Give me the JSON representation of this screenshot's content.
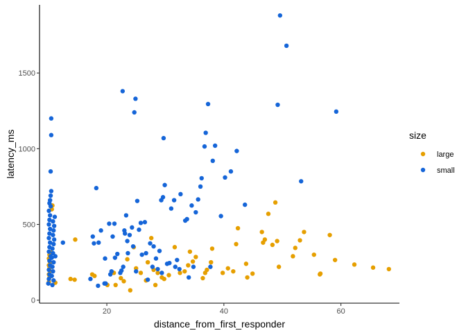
{
  "chart_data": {
    "type": "scatter",
    "title": "",
    "xlabel": "distance_from_first_responder",
    "ylabel": "latency_ms",
    "xlim": [
      8.5,
      70
    ],
    "ylim": [
      -20,
      1950
    ],
    "x_ticks": [
      20,
      40,
      60
    ],
    "y_ticks": [
      0,
      500,
      1000,
      1500
    ],
    "grid": false,
    "legend": {
      "title": "size",
      "position": "right"
    },
    "series": [
      {
        "name": "large",
        "color": "#E69F00",
        "points": [
          [
            10.1,
            120
          ],
          [
            10.2,
            150
          ],
          [
            10.1,
            170
          ],
          [
            10.3,
            190
          ],
          [
            10.2,
            210
          ],
          [
            10.1,
            230
          ],
          [
            10.3,
            250
          ],
          [
            10.2,
            260
          ],
          [
            10.1,
            275
          ],
          [
            10.3,
            290
          ],
          [
            10.2,
            300
          ],
          [
            10.4,
            315
          ],
          [
            10.6,
            600
          ],
          [
            10.7,
            625
          ],
          [
            11.2,
            115
          ],
          [
            13.8,
            140
          ],
          [
            14.5,
            135
          ],
          [
            14.6,
            400
          ],
          [
            17.5,
            170
          ],
          [
            17.9,
            160
          ],
          [
            20.1,
            100
          ],
          [
            21.2,
            180
          ],
          [
            21.5,
            100
          ],
          [
            22.4,
            145
          ],
          [
            22.9,
            125
          ],
          [
            23.5,
            270
          ],
          [
            24.0,
            65
          ],
          [
            24.6,
            350
          ],
          [
            25.0,
            210
          ],
          [
            25.8,
            180
          ],
          [
            26.7,
            130
          ],
          [
            27.0,
            250
          ],
          [
            27.6,
            410
          ],
          [
            28.0,
            200
          ],
          [
            28.3,
            100
          ],
          [
            28.7,
            180
          ],
          [
            29.4,
            150
          ],
          [
            29.8,
            140
          ],
          [
            30.6,
            165
          ],
          [
            31.6,
            350
          ],
          [
            32.5,
            180
          ],
          [
            33.3,
            190
          ],
          [
            33.9,
            230
          ],
          [
            34.2,
            320
          ],
          [
            34.7,
            255
          ],
          [
            35.2,
            285
          ],
          [
            36.4,
            145
          ],
          [
            36.8,
            180
          ],
          [
            37.1,
            200
          ],
          [
            37.8,
            250
          ],
          [
            38.0,
            340
          ],
          [
            39.8,
            180
          ],
          [
            40.7,
            210
          ],
          [
            41.6,
            190
          ],
          [
            42.1,
            370
          ],
          [
            42.4,
            475
          ],
          [
            43.8,
            240
          ],
          [
            44.0,
            150
          ],
          [
            44.9,
            175
          ],
          [
            46.5,
            450
          ],
          [
            46.7,
            380
          ],
          [
            47.0,
            400
          ],
          [
            47.6,
            570
          ],
          [
            48.3,
            365
          ],
          [
            48.8,
            645
          ],
          [
            49.1,
            390
          ],
          [
            49.4,
            220
          ],
          [
            51.8,
            290
          ],
          [
            52.2,
            345
          ],
          [
            53.0,
            395
          ],
          [
            53.7,
            450
          ],
          [
            55.4,
            300
          ],
          [
            56.4,
            170
          ],
          [
            56.5,
            175
          ],
          [
            58.1,
            430
          ],
          [
            59.0,
            265
          ],
          [
            62.3,
            235
          ],
          [
            65.5,
            215
          ],
          [
            68.2,
            205
          ]
        ]
      },
      {
        "name": "small",
        "color": "#1565D8",
        "points": [
          [
            10.0,
            110
          ],
          [
            10.1,
            140
          ],
          [
            10.2,
            170
          ],
          [
            10.1,
            200
          ],
          [
            10.3,
            230
          ],
          [
            10.2,
            260
          ],
          [
            10.4,
            290
          ],
          [
            10.1,
            320
          ],
          [
            10.2,
            350
          ],
          [
            10.3,
            380
          ],
          [
            10.1,
            410
          ],
          [
            10.2,
            440
          ],
          [
            10.3,
            470
          ],
          [
            10.1,
            500
          ],
          [
            10.2,
            530
          ],
          [
            10.3,
            560
          ],
          [
            10.1,
            590
          ],
          [
            10.4,
            620
          ],
          [
            10.2,
            640
          ],
          [
            10.3,
            660
          ],
          [
            10.4,
            690
          ],
          [
            10.5,
            720
          ],
          [
            10.4,
            850
          ],
          [
            10.5,
            1090
          ],
          [
            10.5,
            1200
          ],
          [
            10.7,
            100
          ],
          [
            10.9,
            130
          ],
          [
            10.6,
            160
          ],
          [
            10.8,
            190
          ],
          [
            10.7,
            220
          ],
          [
            10.9,
            250
          ],
          [
            10.6,
            280
          ],
          [
            10.8,
            310
          ],
          [
            10.7,
            340
          ],
          [
            10.9,
            370
          ],
          [
            11.0,
            400
          ],
          [
            10.8,
            430
          ],
          [
            10.9,
            460
          ],
          [
            11.0,
            490
          ],
          [
            10.8,
            520
          ],
          [
            11.1,
            550
          ],
          [
            11.2,
            290
          ],
          [
            12.5,
            380
          ],
          [
            17.2,
            140
          ],
          [
            17.6,
            420
          ],
          [
            17.8,
            375
          ],
          [
            18.2,
            740
          ],
          [
            18.5,
            95
          ],
          [
            18.6,
            380
          ],
          [
            19.0,
            460
          ],
          [
            19.6,
            110
          ],
          [
            19.7,
            275
          ],
          [
            19.8,
            110
          ],
          [
            20.4,
            505
          ],
          [
            20.6,
            170
          ],
          [
            20.8,
            190
          ],
          [
            21.0,
            420
          ],
          [
            21.3,
            505
          ],
          [
            21.4,
            280
          ],
          [
            21.8,
            305
          ],
          [
            22.3,
            180
          ],
          [
            22.5,
            195
          ],
          [
            22.7,
            1380
          ],
          [
            22.8,
            220
          ],
          [
            23.0,
            460
          ],
          [
            23.1,
            440
          ],
          [
            23.3,
            560
          ],
          [
            23.5,
            390
          ],
          [
            23.6,
            310
          ],
          [
            23.9,
            430
          ],
          [
            24.3,
            480
          ],
          [
            24.5,
            355
          ],
          [
            24.7,
            1240
          ],
          [
            24.9,
            1330
          ],
          [
            25.0,
            190
          ],
          [
            25.2,
            655
          ],
          [
            25.5,
            465
          ],
          [
            25.8,
            510
          ],
          [
            26.0,
            300
          ],
          [
            26.5,
            515
          ],
          [
            26.7,
            310
          ],
          [
            27.0,
            135
          ],
          [
            27.4,
            375
          ],
          [
            27.8,
            220
          ],
          [
            28.0,
            355
          ],
          [
            28.4,
            275
          ],
          [
            28.7,
            205
          ],
          [
            29.0,
            325
          ],
          [
            29.3,
            660
          ],
          [
            29.4,
            180
          ],
          [
            29.6,
            680
          ],
          [
            29.7,
            1070
          ],
          [
            29.9,
            760
          ],
          [
            30.3,
            240
          ],
          [
            30.7,
            245
          ],
          [
            31.0,
            605
          ],
          [
            31.5,
            660
          ],
          [
            31.7,
            220
          ],
          [
            32.0,
            265
          ],
          [
            32.4,
            205
          ],
          [
            32.6,
            700
          ],
          [
            33.4,
            525
          ],
          [
            33.7,
            535
          ],
          [
            34.0,
            150
          ],
          [
            34.5,
            625
          ],
          [
            34.8,
            220
          ],
          [
            35.2,
            580
          ],
          [
            35.6,
            665
          ],
          [
            36.0,
            750
          ],
          [
            36.2,
            805
          ],
          [
            36.7,
            1015
          ],
          [
            36.9,
            1105
          ],
          [
            37.3,
            1295
          ],
          [
            37.7,
            220
          ],
          [
            38.1,
            920
          ],
          [
            38.5,
            1020
          ],
          [
            39.5,
            555
          ],
          [
            40.2,
            810
          ],
          [
            41.2,
            850
          ],
          [
            42.2,
            985
          ],
          [
            43.6,
            630
          ],
          [
            49.2,
            1290
          ],
          [
            49.6,
            1880
          ],
          [
            50.7,
            1680
          ],
          [
            53.2,
            785
          ],
          [
            59.2,
            1245
          ]
        ]
      }
    ]
  }
}
